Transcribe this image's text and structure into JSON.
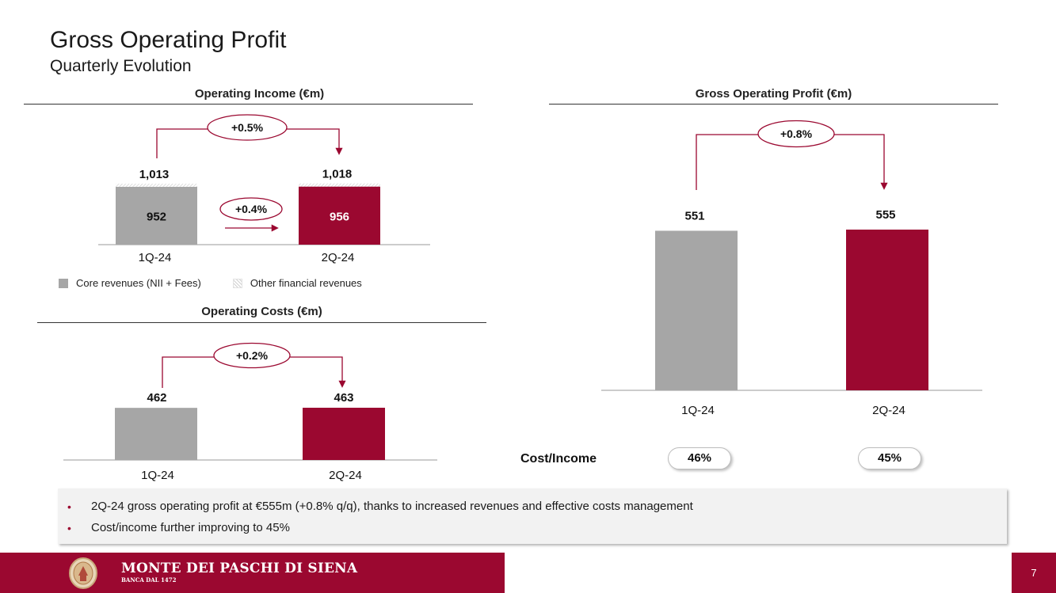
{
  "page": {
    "title": "Gross Operating Profit",
    "subtitle": "Quarterly Evolution",
    "page_number": "7"
  },
  "colors": {
    "brand": "#9b0830",
    "grey_bar": "#a6a6a6"
  },
  "legend": {
    "core_label": "Core revenues (NII + Fees)",
    "other_label": "Other financial revenues"
  },
  "cost_income": {
    "label": "Cost/Income",
    "values": [
      "46%",
      "45%"
    ]
  },
  "bullets": [
    "2Q-24 gross operating profit at €555m (+0.8% q/q), thanks to increased revenues and effective costs management",
    "Cost/income further improving to 45%"
  ],
  "footer": {
    "brand_name": "MONTE DEI PASCHI DI SIENA",
    "brand_sub": "BANCA DAL 1472"
  },
  "chart_data": [
    {
      "type": "bar",
      "title": "Operating Income (€m)",
      "categories": [
        "1Q-24",
        "2Q-24"
      ],
      "series": [
        {
          "name": "Core revenues (NII + Fees)",
          "values": [
            952,
            956
          ]
        },
        {
          "name": "Other financial revenues",
          "values": [
            61,
            62
          ]
        }
      ],
      "totals": [
        1013,
        1018
      ],
      "total_labels": [
        "1,013",
        "1,018"
      ],
      "value_labels": [
        "952",
        "956"
      ],
      "change_total": "+0.5%",
      "change_core": "+0.4%"
    },
    {
      "type": "bar",
      "title": "Operating Costs (€m)",
      "categories": [
        "1Q-24",
        "2Q-24"
      ],
      "values": [
        462,
        463
      ],
      "value_labels": [
        "462",
        "463"
      ],
      "change": "+0.2%"
    },
    {
      "type": "bar",
      "title": "Gross Operating Profit (€m)",
      "categories": [
        "1Q-24",
        "2Q-24"
      ],
      "values": [
        551,
        555
      ],
      "value_labels": [
        "551",
        "555"
      ],
      "change": "+0.8%"
    }
  ]
}
